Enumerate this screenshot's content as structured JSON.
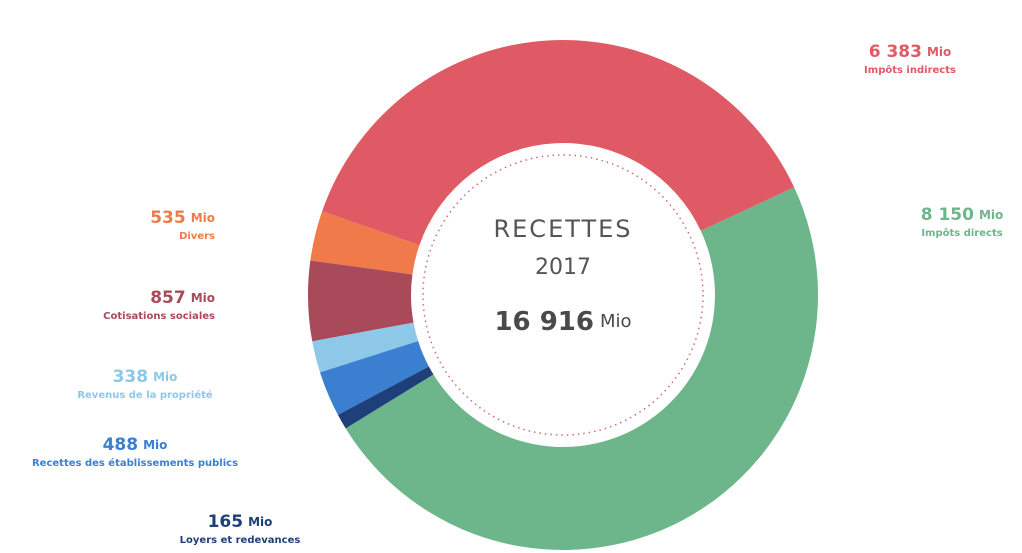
{
  "chart_data": {
    "type": "donut",
    "title": "RECETTES",
    "subtitle": "2017",
    "total": {
      "value": 16916,
      "label": "16 916"
    },
    "unit": "Mio",
    "categories": [
      "Impôts indirects",
      "Impôts directs",
      "Loyers et redevances",
      "Recettes des établissements publics",
      "Revenus de la propriété",
      "Cotisations sociales",
      "Divers"
    ],
    "values": [
      6383,
      8150,
      165,
      488,
      338,
      857,
      535
    ],
    "value_labels": [
      "6 383",
      "8 150",
      "165",
      "488",
      "338",
      "857",
      "535"
    ],
    "colors": [
      "#e05a66",
      "#6db58a",
      "#1f3f7a",
      "#3a7fd0",
      "#8ec8e8",
      "#a94a5a",
      "#f07a4a"
    ]
  }
}
